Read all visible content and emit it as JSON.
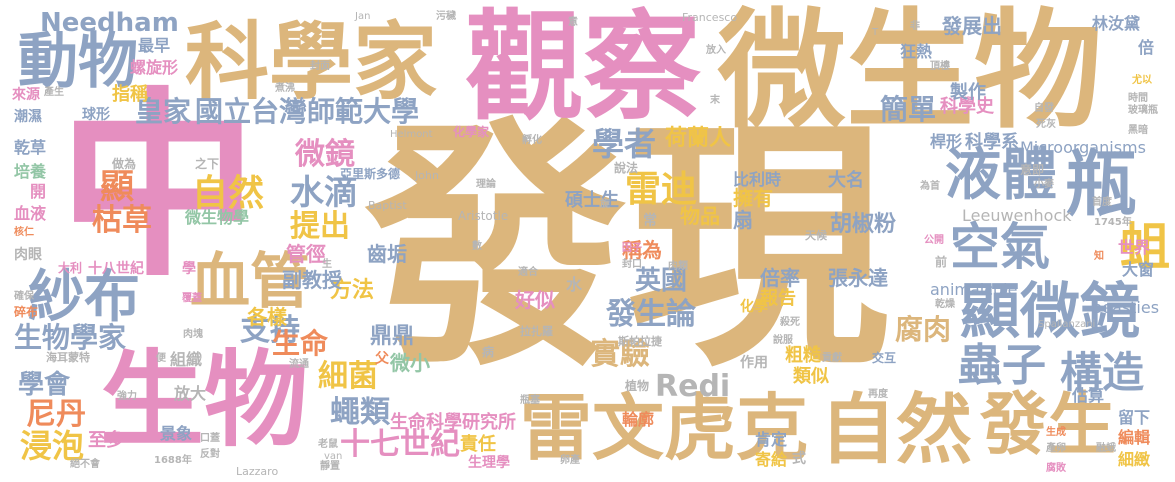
{
  "title": "",
  "colors": {
    "tan": "#dcb67c",
    "pink": "#e58fc0",
    "blue": "#8ea3c3",
    "orange": "#ef8b5b",
    "green": "#93c6a6",
    "yellow": "#f0c446",
    "gray": "#b5b5b5"
  },
  "words": [
    {
      "text": "發現",
      "color": "tan"
    },
    {
      "text": "中",
      "color": "pink"
    },
    {
      "text": "觀察",
      "color": "pink"
    },
    {
      "text": "微生物",
      "color": "tan"
    },
    {
      "text": "科學家",
      "color": "tan"
    },
    {
      "text": "生物",
      "color": "pink"
    },
    {
      "text": "雷文虎克",
      "color": "tan"
    },
    {
      "text": "自然",
      "color": "tan"
    },
    {
      "text": "發生",
      "color": "tan"
    },
    {
      "text": "顯微鏡",
      "color": "blue"
    },
    {
      "text": "液體",
      "color": "blue"
    },
    {
      "text": "瓶",
      "color": "blue"
    },
    {
      "text": "動物",
      "color": "blue"
    },
    {
      "text": "紗布",
      "color": "blue"
    },
    {
      "text": "血管",
      "color": "tan"
    },
    {
      "text": "空氣",
      "color": "blue"
    },
    {
      "text": "蟲子",
      "color": "blue"
    },
    {
      "text": "構造",
      "color": "blue"
    },
    {
      "text": "蛆",
      "color": "yellow"
    },
    {
      "text": "Needham",
      "color": "blue"
    },
    {
      "text": "國立台灣師範大學",
      "color": "blue"
    },
    {
      "text": "皇家",
      "color": "blue"
    },
    {
      "text": "微鏡",
      "color": "pink"
    },
    {
      "text": "學者",
      "color": "blue"
    },
    {
      "text": "自然",
      "color": "yellow"
    },
    {
      "text": "水滴",
      "color": "blue"
    },
    {
      "text": "雷迪",
      "color": "yellow"
    },
    {
      "text": "提出",
      "color": "yellow"
    },
    {
      "text": "支持",
      "color": "blue"
    },
    {
      "text": "生命",
      "color": "orange"
    },
    {
      "text": "細菌",
      "color": "yellow"
    },
    {
      "text": "生物學家",
      "color": "blue"
    },
    {
      "text": "學會",
      "color": "blue"
    },
    {
      "text": "尼丹",
      "color": "orange"
    },
    {
      "text": "浸泡",
      "color": "yellow"
    },
    {
      "text": "十七世紀",
      "color": "pink"
    },
    {
      "text": "蠅類",
      "color": "blue"
    },
    {
      "text": "發生論",
      "color": "blue"
    },
    {
      "text": "實驗",
      "color": "tan"
    },
    {
      "text": "Redi",
      "color": "gray"
    },
    {
      "text": "英國",
      "color": "blue"
    },
    {
      "text": "腐肉",
      "color": "tan"
    },
    {
      "text": "簡單",
      "color": "blue"
    },
    {
      "text": "荷蘭人",
      "color": "yellow"
    },
    {
      "text": "顯",
      "color": "orange"
    },
    {
      "text": "枯草",
      "color": "orange"
    },
    {
      "text": "鼎鼎",
      "color": "blue"
    },
    {
      "text": "方法",
      "color": "yellow"
    },
    {
      "text": "好似",
      "color": "pink"
    },
    {
      "text": "微小",
      "color": "green"
    },
    {
      "text": "各樣",
      "color": "yellow"
    },
    {
      "text": "管徑",
      "color": "pink"
    },
    {
      "text": "副教授",
      "color": "blue"
    },
    {
      "text": "齒垢",
      "color": "blue"
    },
    {
      "text": "碩士生",
      "color": "blue"
    },
    {
      "text": "水",
      "color": "gray"
    },
    {
      "text": "稱為",
      "color": "orange"
    },
    {
      "text": "物品",
      "color": "yellow"
    },
    {
      "text": "常",
      "color": "gray"
    },
    {
      "text": "扇",
      "color": "blue"
    },
    {
      "text": "擁有",
      "color": "yellow"
    },
    {
      "text": "比利時",
      "color": "blue"
    },
    {
      "text": "大名",
      "color": "blue"
    },
    {
      "text": "胡椒粉",
      "color": "blue"
    },
    {
      "text": "天候",
      "color": "gray"
    },
    {
      "text": "倍率",
      "color": "blue"
    },
    {
      "text": "張永達",
      "color": "blue"
    },
    {
      "text": "報告",
      "color": "yellow"
    },
    {
      "text": "化學",
      "color": "yellow"
    },
    {
      "text": "粗糙",
      "color": "yellow"
    },
    {
      "text": "類似",
      "color": "yellow"
    },
    {
      "text": "肯定",
      "color": "blue"
    },
    {
      "text": "寄給",
      "color": "yellow"
    },
    {
      "text": "責任",
      "color": "yellow"
    },
    {
      "text": "生命科學研究所",
      "color": "pink"
    },
    {
      "text": "生理學",
      "color": "pink"
    },
    {
      "text": "至多",
      "color": "pink"
    },
    {
      "text": "景象",
      "color": "blue"
    },
    {
      "text": "微生物學",
      "color": "green"
    },
    {
      "text": "十八世紀",
      "color": "pink"
    },
    {
      "text": "科學史",
      "color": "pink"
    },
    {
      "text": "科學系",
      "color": "blue"
    },
    {
      "text": "桿形",
      "color": "blue"
    },
    {
      "text": "Microorganisms",
      "color": "blue"
    },
    {
      "text": "Leeuwenhock",
      "color": "gray"
    },
    {
      "text": "animalcule",
      "color": "blue"
    },
    {
      "text": "beasties",
      "color": "blue"
    },
    {
      "text": "世界",
      "color": "pink"
    },
    {
      "text": "大窗",
      "color": "blue"
    },
    {
      "text": "估算",
      "color": "blue"
    },
    {
      "text": "留下",
      "color": "blue"
    },
    {
      "text": "編輯",
      "color": "orange"
    },
    {
      "text": "細緻",
      "color": "yellow"
    },
    {
      "text": "發展出",
      "color": "blue"
    },
    {
      "text": "狂熱",
      "color": "blue"
    },
    {
      "text": "製作",
      "color": "blue"
    },
    {
      "text": "林汝黛",
      "color": "blue"
    },
    {
      "text": "最早",
      "color": "blue"
    },
    {
      "text": "螺旋形",
      "color": "pink"
    },
    {
      "text": "指稱",
      "color": "yellow"
    },
    {
      "text": "球形",
      "color": "blue"
    },
    {
      "text": "來源",
      "color": "pink"
    },
    {
      "text": "潮濕",
      "color": "blue"
    },
    {
      "text": "乾草",
      "color": "blue"
    },
    {
      "text": "培養",
      "color": "green"
    },
    {
      "text": "開",
      "color": "pink"
    },
    {
      "text": "血液",
      "color": "pink"
    },
    {
      "text": "肉眼",
      "color": "gray"
    },
    {
      "text": "碎布",
      "color": "orange"
    },
    {
      "text": "組織",
      "color": "gray"
    },
    {
      "text": "放大",
      "color": "gray"
    },
    {
      "text": "交互",
      "color": "blue"
    },
    {
      "text": "作用",
      "color": "gray"
    },
    {
      "text": "輪廓",
      "color": "orange"
    },
    {
      "text": "植物",
      "color": "gray"
    },
    {
      "text": "學",
      "color": "pink"
    },
    {
      "text": "父",
      "color": "orange"
    },
    {
      "text": "大利",
      "color": "pink"
    },
    {
      "text": "Aristotle",
      "color": "gray"
    },
    {
      "text": "亞里斯多德",
      "color": "blue"
    },
    {
      "text": "之下",
      "color": "gray"
    },
    {
      "text": "做為",
      "color": "gray"
    },
    {
      "text": "John",
      "color": "gray"
    },
    {
      "text": "Baptist",
      "color": "gray"
    },
    {
      "text": "Lazzaro",
      "color": "gray"
    },
    {
      "text": "Spallanzani",
      "color": "gray"
    },
    {
      "text": "Helmont",
      "color": "gray"
    },
    {
      "text": "化學家",
      "color": "pink"
    },
    {
      "text": "Francesco",
      "color": "gray"
    },
    {
      "text": "Jan",
      "color": "gray"
    },
    {
      "text": "1688年",
      "color": "gray"
    },
    {
      "text": "1745年",
      "color": "gray"
    },
    {
      "text": "拉扎羅",
      "color": "gray"
    },
    {
      "text": "斯帕拉捷",
      "color": "gray"
    },
    {
      "text": "適合",
      "color": "gray"
    },
    {
      "text": "說法",
      "color": "gray"
    },
    {
      "text": "意即",
      "color": "gray"
    },
    {
      "text": "為首",
      "color": "gray"
    },
    {
      "text": "公開",
      "color": "pink"
    },
    {
      "text": "前",
      "color": "gray"
    },
    {
      "text": "知",
      "color": "orange"
    },
    {
      "text": "封面",
      "color": "gray"
    },
    {
      "text": "煮沸",
      "color": "gray"
    },
    {
      "text": "放入",
      "color": "gray"
    },
    {
      "text": "頂樓",
      "color": "gray"
    },
    {
      "text": "貢獻",
      "color": "gray"
    },
    {
      "text": "再度",
      "color": "gray"
    },
    {
      "text": "式",
      "color": "gray"
    },
    {
      "text": "反對",
      "color": "gray"
    },
    {
      "text": "強力",
      "color": "gray"
    },
    {
      "text": "口蓋",
      "color": "gray"
    },
    {
      "text": "靜置",
      "color": "gray"
    },
    {
      "text": "老鼠",
      "color": "gray"
    },
    {
      "text": "海耳蒙特",
      "color": "gray"
    },
    {
      "text": "絕不會",
      "color": "gray"
    },
    {
      "text": "便",
      "color": "gray"
    },
    {
      "text": "瓶塞",
      "color": "gray"
    },
    {
      "text": "肉類",
      "color": "gray"
    },
    {
      "text": "肉塊",
      "color": "gray"
    },
    {
      "text": "覆蓋",
      "color": "gray"
    },
    {
      "text": "流通",
      "color": "gray"
    },
    {
      "text": "核仁",
      "color": "gray"
    },
    {
      "text": "殺死",
      "color": "gray"
    },
    {
      "text": "說服",
      "color": "gray"
    },
    {
      "text": "確保",
      "color": "gray"
    },
    {
      "text": "產生",
      "color": "gray"
    },
    {
      "text": "時間",
      "color": "gray"
    },
    {
      "text": "玻璃瓶",
      "color": "gray"
    },
    {
      "text": "黑暗",
      "color": "gray"
    },
    {
      "text": "首度",
      "color": "gray"
    },
    {
      "text": "小麥",
      "color": "gray"
    },
    {
      "text": "乾燥",
      "color": "gray"
    },
    {
      "text": "因子",
      "color": "gray"
    },
    {
      "text": "封口",
      "color": "gray"
    },
    {
      "text": "數",
      "color": "gray"
    },
    {
      "text": "旋",
      "color": "gray"
    },
    {
      "text": "理論",
      "color": "gray"
    },
    {
      "text": "孵化",
      "color": "gray"
    },
    {
      "text": "死灰",
      "color": "gray"
    },
    {
      "text": "自發",
      "color": "gray"
    },
    {
      "text": "尤以",
      "color": "gray"
    },
    {
      "text": "倍",
      "color": "blue"
    },
    {
      "text": "非",
      "color": "gray"
    },
    {
      "text": "生",
      "color": "gray"
    },
    {
      "text": "末",
      "color": "gray"
    },
    {
      "text": "意",
      "color": "gray"
    },
    {
      "text": "污穢",
      "color": "gray"
    },
    {
      "text": "卵產",
      "color": "gray"
    },
    {
      "text": "產卵",
      "color": "gray"
    },
    {
      "text": "融蛾",
      "color": "gray"
    },
    {
      "text": "腐敗",
      "color": "gray"
    },
    {
      "text": "生成",
      "color": "gray"
    },
    {
      "text": "病",
      "color": "gray"
    },
    {
      "text": "van",
      "color": "gray"
    },
    {
      "text": "T",
      "color": "gray"
    }
  ]
}
